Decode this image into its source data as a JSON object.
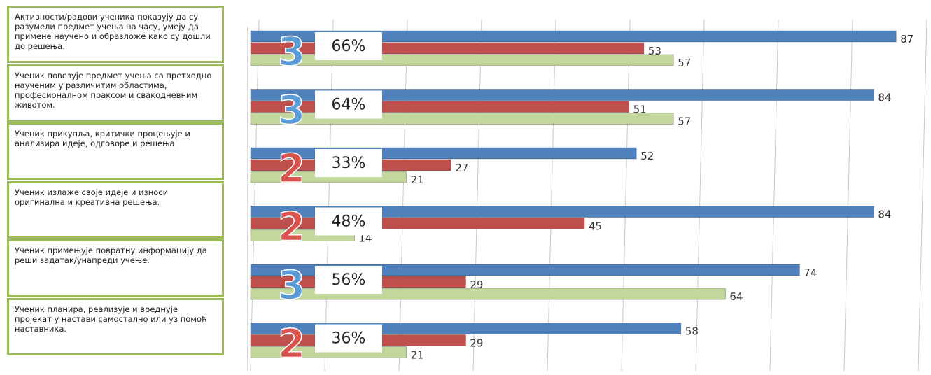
{
  "chart_data": {
    "type": "bar",
    "orientation": "horizontal",
    "categories": [
      "Активности/радови ученика показују да су разумели предмет учења на часу, умеју да примене научено и образложе како су дошли до решења.",
      "Ученик повезује предмет учења са претходно наученим у различитим областима, професионалном праксом и свакодневним животом.",
      "Ученик прикупља, критички процењује и анализира идеје, одговоре и решења",
      "Ученик излаже своје идеје и износи оригинална и креативна решења.",
      "Ученик примењује повратну информацију да реши задатак/унапреди учење.",
      "Ученик планира, реализује и вреднује пројекат у настави самостално или уз помоћ наставника."
    ],
    "series": [
      {
        "color": "#4f81bd",
        "values": [
          87,
          84,
          52,
          84,
          74,
          58
        ]
      },
      {
        "color": "#c0504d",
        "values": [
          53,
          51,
          27,
          45,
          29,
          29
        ]
      },
      {
        "color": "#c3d69b",
        "values": [
          57,
          57,
          21,
          14,
          64,
          21
        ]
      }
    ],
    "annotations": [
      {
        "grade": "3",
        "percent": "66%",
        "color": "#5b9bd5"
      },
      {
        "grade": "3",
        "percent": "64%",
        "color": "#5b9bd5"
      },
      {
        "grade": "2",
        "percent": "33%",
        "color": "#d9534f"
      },
      {
        "grade": "2",
        "percent": "48%",
        "color": "#d9534f"
      },
      {
        "grade": "3",
        "percent": "56%",
        "color": "#5b9bd5"
      },
      {
        "grade": "2",
        "percent": "36%",
        "color": "#d9534f"
      }
    ],
    "xlim": [
      0,
      90
    ],
    "xticks": [
      0,
      10,
      20,
      30,
      40,
      50,
      60,
      70,
      80,
      90
    ],
    "grid": true,
    "show_tick_labels": false
  }
}
